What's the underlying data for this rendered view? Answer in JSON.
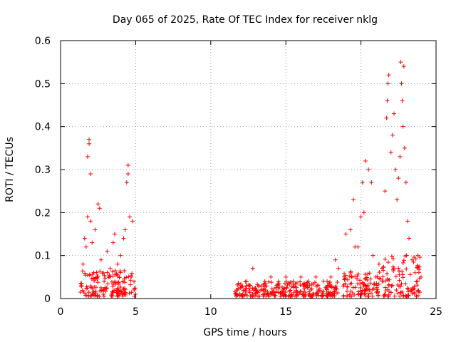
{
  "chart_data": {
    "type": "scatter",
    "title": "Day 065 of 2025, Rate Of TEC Index for receiver nklg",
    "xlabel": "GPS time / hours",
    "ylabel": "ROTI / TECUs",
    "xlim": [
      0,
      25
    ],
    "ylim": [
      0,
      0.6
    ],
    "xticks": [
      "0",
      "5",
      "10",
      "15",
      "20",
      "25"
    ],
    "yticks": [
      "0",
      "0.1",
      "0.2",
      "0.3",
      "0.4",
      "0.5",
      "0.6"
    ],
    "grid": true,
    "marker": "plus",
    "color": "#ff0000",
    "series": [
      {
        "points": [
          [
            1.4,
            0.03
          ],
          [
            1.5,
            0.08
          ],
          [
            1.6,
            0.14
          ],
          [
            1.7,
            0.12
          ],
          [
            1.8,
            0.19
          ],
          [
            1.8,
            0.33
          ],
          [
            1.9,
            0.36
          ],
          [
            1.9,
            0.37
          ],
          [
            2.0,
            0.29
          ],
          [
            2.0,
            0.18
          ],
          [
            2.1,
            0.13
          ],
          [
            2.2,
            0.06
          ],
          [
            2.3,
            0.16
          ],
          [
            2.5,
            0.22
          ],
          [
            2.6,
            0.21
          ],
          [
            2.7,
            0.09
          ],
          [
            2.9,
            0.04
          ],
          [
            3.1,
            0.11
          ],
          [
            3.3,
            0.07
          ],
          [
            3.5,
            0.13
          ],
          [
            3.6,
            0.15
          ],
          [
            3.8,
            0.08
          ],
          [
            4.0,
            0.1
          ],
          [
            4.2,
            0.14
          ],
          [
            4.3,
            0.16
          ],
          [
            4.4,
            0.27
          ],
          [
            4.5,
            0.31
          ],
          [
            4.5,
            0.29
          ],
          [
            4.6,
            0.19
          ],
          [
            4.7,
            0.05
          ],
          [
            4.8,
            0.18
          ],
          [
            4.9,
            0.02
          ],
          [
            5.0,
            0.01
          ],
          [
            11.7,
            0.02
          ],
          [
            12.0,
            0.03
          ],
          [
            12.4,
            0.04
          ],
          [
            12.8,
            0.07
          ],
          [
            13.2,
            0.03
          ],
          [
            13.6,
            0.04
          ],
          [
            14.0,
            0.05
          ],
          [
            14.5,
            0.04
          ],
          [
            15.0,
            0.05
          ],
          [
            15.5,
            0.04
          ],
          [
            16.0,
            0.05
          ],
          [
            16.5,
            0.04
          ],
          [
            17.0,
            0.05
          ],
          [
            17.5,
            0.04
          ],
          [
            18.0,
            0.05
          ],
          [
            18.3,
            0.09
          ],
          [
            18.5,
            0.07
          ],
          [
            19.0,
            0.15
          ],
          [
            19.3,
            0.16
          ],
          [
            19.5,
            0.23
          ],
          [
            19.6,
            0.12
          ],
          [
            19.8,
            0.12
          ],
          [
            20.0,
            0.19
          ],
          [
            20.1,
            0.27
          ],
          [
            20.2,
            0.2
          ],
          [
            20.3,
            0.32
          ],
          [
            20.5,
            0.3
          ],
          [
            20.7,
            0.27
          ],
          [
            20.8,
            0.1
          ],
          [
            21.0,
            0.05
          ],
          [
            21.2,
            0.08
          ],
          [
            21.4,
            0.07
          ],
          [
            21.6,
            0.25
          ],
          [
            21.7,
            0.42
          ],
          [
            21.75,
            0.46
          ],
          [
            21.8,
            0.5
          ],
          [
            21.85,
            0.52
          ],
          [
            22.0,
            0.34
          ],
          [
            22.1,
            0.38
          ],
          [
            22.2,
            0.43
          ],
          [
            22.3,
            0.3
          ],
          [
            22.4,
            0.23
          ],
          [
            22.5,
            0.28
          ],
          [
            22.6,
            0.33
          ],
          [
            22.65,
            0.55
          ],
          [
            22.7,
            0.5
          ],
          [
            22.75,
            0.46
          ],
          [
            22.8,
            0.4
          ],
          [
            22.85,
            0.54
          ],
          [
            22.9,
            0.35
          ],
          [
            23.0,
            0.27
          ],
          [
            23.1,
            0.18
          ],
          [
            23.2,
            0.14
          ],
          [
            23.4,
            0.09
          ],
          [
            23.6,
            0.06
          ],
          [
            23.8,
            0.1
          ],
          [
            24.0,
            0.05
          ]
        ],
        "dense_bands": [
          {
            "x": [
              1.3,
              5.0
            ],
            "y_max": 0.06
          },
          {
            "x": [
              11.6,
              18.5
            ],
            "y_max": 0.035
          },
          {
            "x": [
              18.8,
              21.3
            ],
            "y_max": 0.06
          },
          {
            "x": [
              21.4,
              24.0
            ],
            "y_max": 0.1
          }
        ]
      }
    ]
  }
}
